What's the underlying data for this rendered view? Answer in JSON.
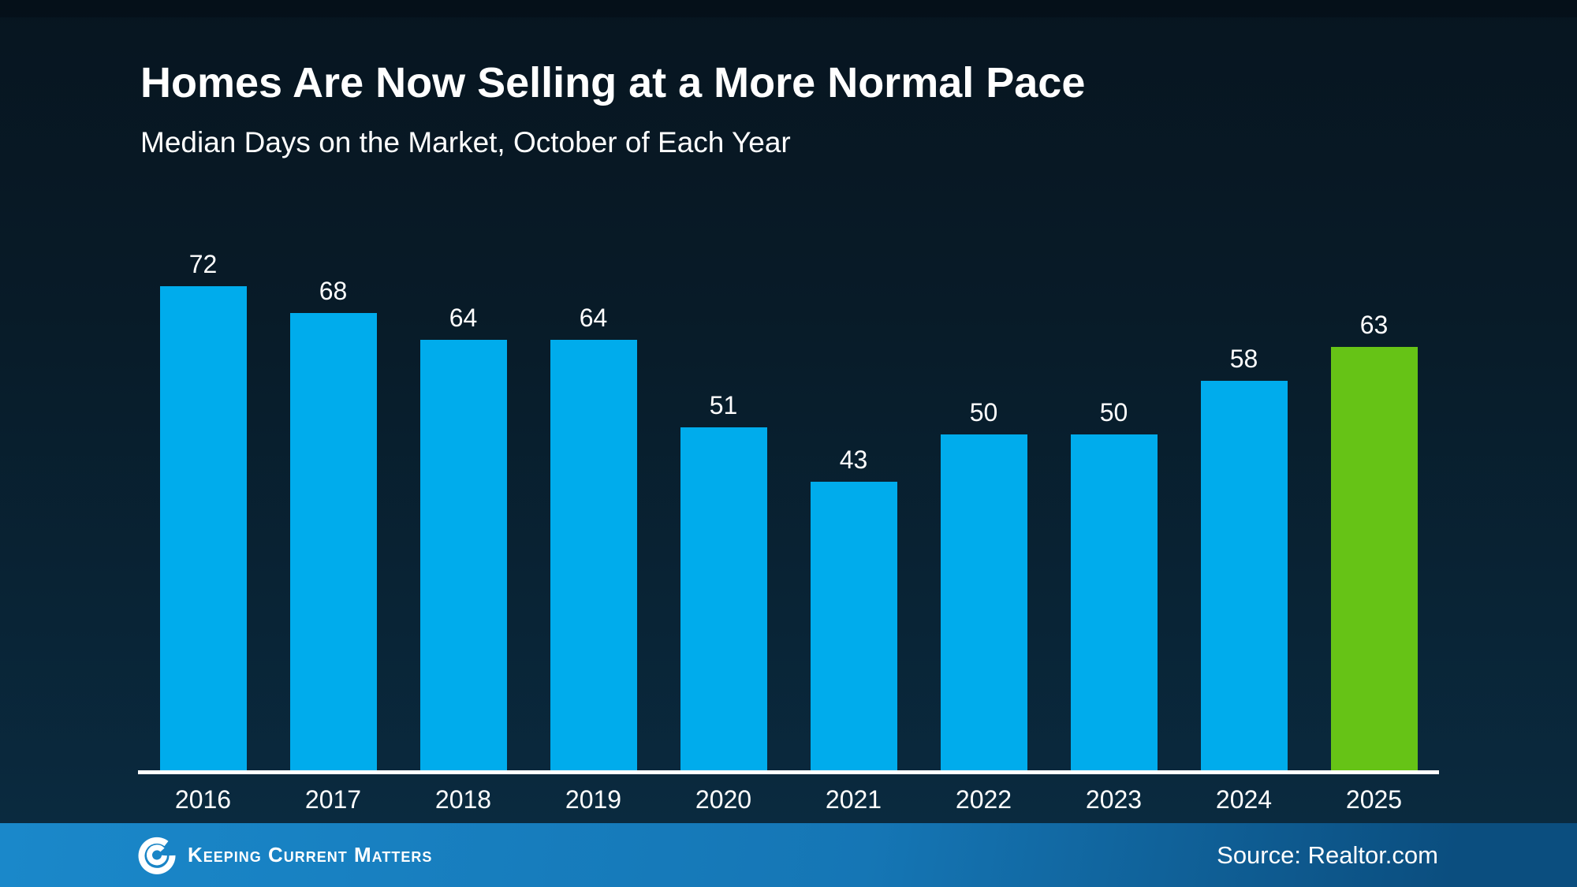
{
  "slide": {
    "title": "Homes Are Now Selling at a More Normal Pace",
    "subtitle": "Median Days on the Market, October of Each Year"
  },
  "chart_data": {
    "type": "bar",
    "title": "Homes Are Now Selling at a More Normal Pace",
    "subtitle": "Median Days on the Market, October of Each Year",
    "categories": [
      "2016",
      "2017",
      "2018",
      "2019",
      "2020",
      "2021",
      "2022",
      "2023",
      "2024",
      "2025"
    ],
    "values": [
      72,
      68,
      64,
      64,
      51,
      43,
      50,
      50,
      58,
      63
    ],
    "xlabel": "",
    "ylabel": "",
    "ylim": [
      0,
      72
    ],
    "grid": false,
    "legend": false,
    "value_labels_shown": true,
    "bar_color": "#00ACEC",
    "highlight_color": "#66C316",
    "highlight_index": 9,
    "axis_line_color": "#ffffff",
    "label_color": "#ffffff"
  },
  "footer": {
    "brand": "Keeping Current Matters",
    "source_label": "Source: Realtor.com",
    "logo_icon": "kcm-swirl-icon",
    "background_left": "#1a88ca",
    "background_right": "#0b4e7f"
  },
  "colors": {
    "background_top": "#071520",
    "background_bottom": "#0a2c42",
    "text": "#ffffff"
  }
}
